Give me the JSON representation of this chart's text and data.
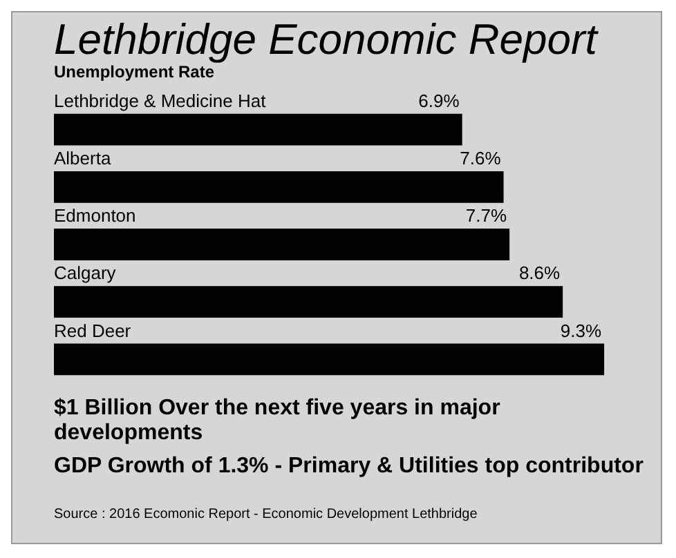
{
  "chart_data": {
    "type": "bar",
    "orientation": "horizontal",
    "title": "Lethbridge Economic Report",
    "subtitle": "Unemployment Rate",
    "categories": [
      "Lethbridge & Medicine Hat",
      "Alberta",
      "Edmonton",
      "Calgary",
      "Red Deer"
    ],
    "values": [
      6.9,
      7.6,
      7.7,
      8.6,
      9.3
    ],
    "color": "#000000",
    "data_labels": true,
    "value_labels": [
      "6.9%",
      "7.6%",
      "7.7%",
      "8.6%",
      "9.3%"
    ],
    "annotations": [
      "$1 Billion Over the next five years in major developments",
      "GDP Growth of 1.3% - Primary & Utilities top contributor",
      "Source : 2016 Ecomonic Report - Economic Development Lethbridge"
    ]
  }
}
